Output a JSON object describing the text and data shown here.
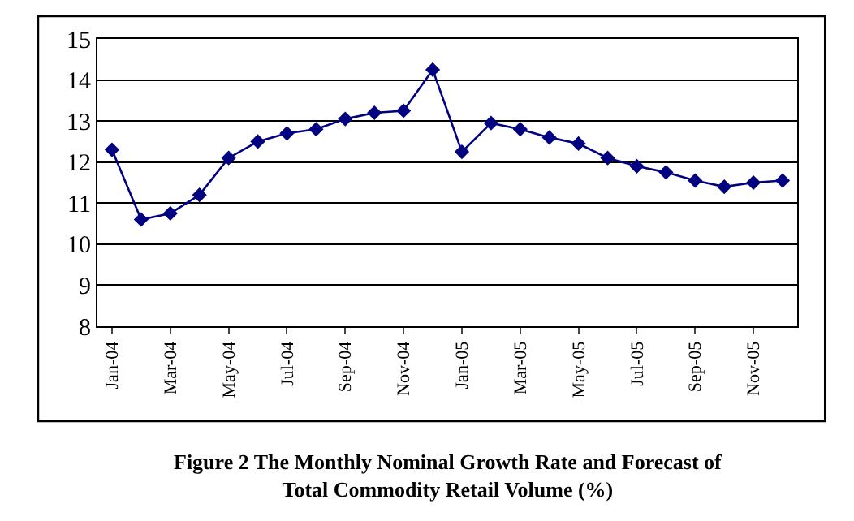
{
  "chart_data": {
    "type": "line",
    "title": "Figure 2 The Monthly Nominal Growth Rate and Forecast of\nTotal Commodity Retail Volume (%)",
    "categories": [
      "Jan-04",
      null,
      "Mar-04",
      null,
      "May-04",
      null,
      "Jul-04",
      null,
      "Sep-04",
      null,
      "Nov-04",
      null,
      "Jan-05",
      null,
      "Mar-05",
      null,
      "May-05",
      null,
      "Jul-05",
      null,
      "Sep-05",
      null,
      "Nov-05",
      null
    ],
    "series": [
      {
        "color": "#000080",
        "values": [
          12.3,
          10.6,
          10.75,
          11.2,
          12.1,
          12.5,
          12.7,
          12.8,
          13.05,
          13.2,
          13.25,
          14.25,
          12.25,
          12.95,
          12.8,
          12.6,
          12.45,
          12.1,
          11.9,
          11.75,
          11.55,
          11.4,
          11.5,
          11.55
        ]
      }
    ],
    "ylim": [
      8,
      15
    ],
    "yticks": [
      8,
      9,
      10,
      11,
      12,
      13,
      14,
      15
    ],
    "grid": "y",
    "marker": "diamond",
    "line_style": "solid"
  }
}
